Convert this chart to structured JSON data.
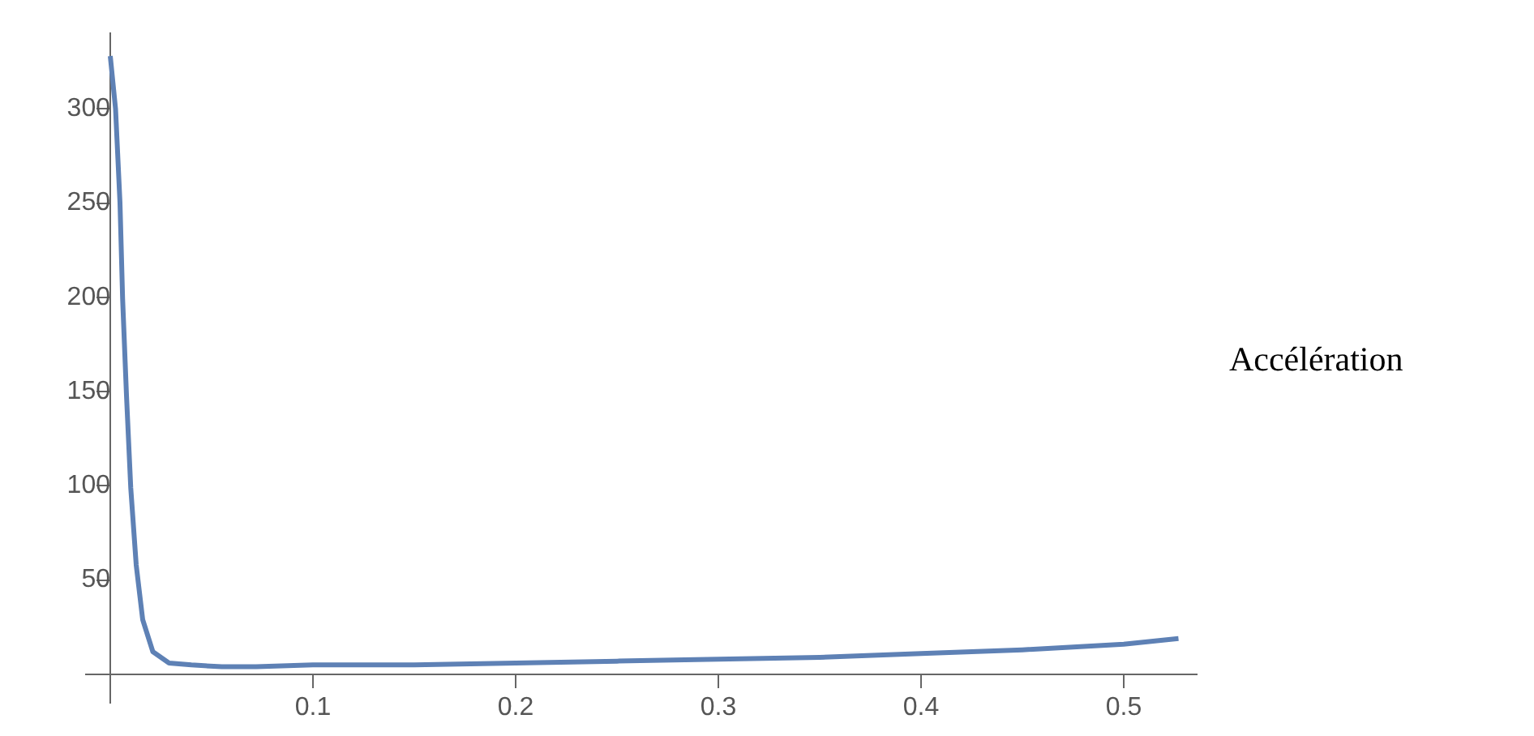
{
  "chart_data": {
    "type": "line",
    "x": [
      0,
      0.0026,
      0.0048,
      0.0061,
      0.008,
      0.0101,
      0.0128,
      0.016,
      0.021,
      0.029,
      0.04,
      0.055,
      0.072,
      0.1,
      0.15,
      0.2,
      0.25,
      0.3,
      0.35,
      0.4,
      0.45,
      0.5,
      0.527
    ],
    "series": [
      {
        "color": "#5e81b5",
        "values": [
          328,
          300,
          250,
          199,
          148,
          99,
          58,
          29,
          12,
          6,
          5,
          4,
          4,
          5,
          5,
          6,
          7,
          8,
          9,
          11,
          13,
          16,
          19
        ]
      }
    ],
    "xlim": [
      -0.012,
      0.536
    ],
    "ylim": [
      -15,
      340
    ],
    "xticks": [
      0.1,
      0.2,
      0.3,
      0.4,
      0.5
    ],
    "yticks": [
      50,
      100,
      150,
      200,
      250,
      300
    ],
    "annotations": [
      "Accélération"
    ],
    "grid": false,
    "legend": false,
    "marker": "none",
    "line_style": "solid"
  }
}
